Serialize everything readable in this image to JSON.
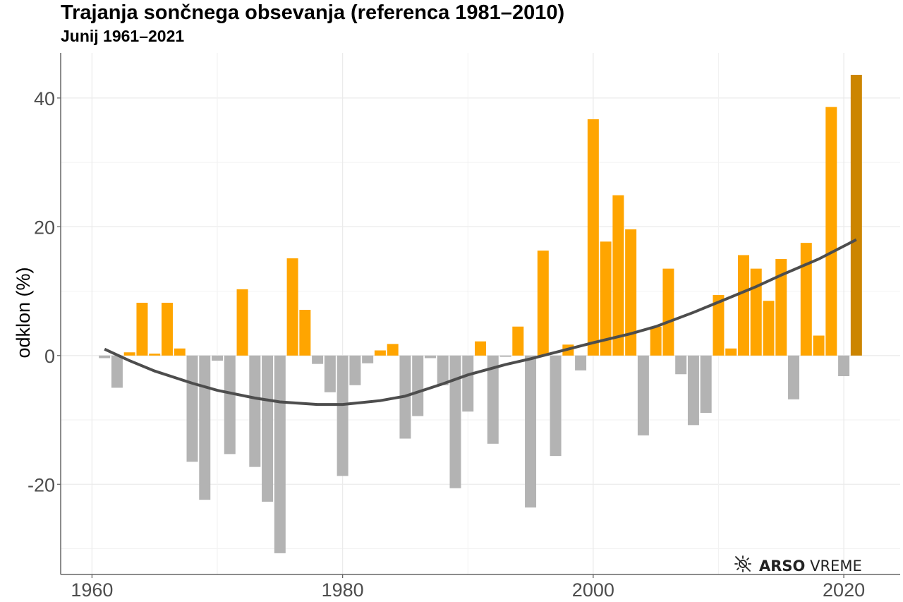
{
  "title": "Trajanja sončnega obsevanja (referenca 1981–2010)",
  "subtitle": "Junij 1961–2021",
  "logo": {
    "icon": "sun-crossed-icon",
    "brand_bold": "ARSO",
    "brand_light": "VREME"
  },
  "chart_data": {
    "type": "bar",
    "title": "Trajanja sončnega obsevanja (referenca 1981–2010)",
    "subtitle": "Junij 1961–2021",
    "xlabel": "",
    "ylabel": "odklon (%)",
    "xlim": [
      1957.5,
      2024.5
    ],
    "ylim": [
      -34,
      47
    ],
    "xticks": [
      1960,
      1980,
      2000,
      2020
    ],
    "xtick_labels": [
      "1960",
      "1980",
      "2000",
      "2020"
    ],
    "yticks": [
      -20,
      0,
      20,
      40
    ],
    "ytick_labels": [
      "-20",
      "0",
      "20",
      "40"
    ],
    "minor_yticks": [
      -30,
      -10,
      10,
      30
    ],
    "minor_xticks": [
      1970,
      1990,
      2010
    ],
    "grid": true,
    "colors": {
      "positive": "#FFA500",
      "negative": "#B3B3B3",
      "highlight": "#CC8500",
      "trend": "#4D4D4D"
    },
    "highlight_year": 2021,
    "x": [
      1961,
      1962,
      1963,
      1964,
      1965,
      1966,
      1967,
      1968,
      1969,
      1970,
      1971,
      1972,
      1973,
      1974,
      1975,
      1976,
      1977,
      1978,
      1979,
      1980,
      1981,
      1982,
      1983,
      1984,
      1985,
      1986,
      1987,
      1988,
      1989,
      1990,
      1991,
      1992,
      1993,
      1994,
      1995,
      1996,
      1997,
      1998,
      1999,
      2000,
      2001,
      2002,
      2003,
      2004,
      2005,
      2006,
      2007,
      2008,
      2009,
      2010,
      2011,
      2012,
      2013,
      2014,
      2015,
      2016,
      2017,
      2018,
      2019,
      2020,
      2021
    ],
    "values": [
      -0.4,
      -5.0,
      0.5,
      8.2,
      0.3,
      8.2,
      1.1,
      -16.5,
      -22.4,
      -0.8,
      -15.3,
      10.3,
      -17.3,
      -22.7,
      -30.7,
      15.1,
      7.1,
      -1.3,
      -5.7,
      -18.7,
      -4.6,
      -1.2,
      0.8,
      1.8,
      -12.9,
      -9.4,
      -0.4,
      -4.6,
      -20.6,
      -8.7,
      2.2,
      -13.7,
      -0.2,
      4.5,
      -23.6,
      16.3,
      -15.6,
      1.7,
      -2.3,
      36.7,
      17.7,
      24.9,
      19.6,
      -12.4,
      4.5,
      13.5,
      -2.9,
      -10.8,
      -8.9,
      9.4,
      1.1,
      15.6,
      13.5,
      8.5,
      15.0,
      -6.8,
      17.5,
      3.1,
      38.6,
      -3.2,
      43.6
    ],
    "trend": {
      "name": "trend",
      "x": [
        1961,
        1963,
        1965,
        1968,
        1970,
        1973,
        1975,
        1978,
        1980,
        1983,
        1985,
        1988,
        1990,
        1993,
        1995,
        1998,
        2000,
        2003,
        2005,
        2008,
        2010,
        2013,
        2015,
        2018,
        2021
      ],
      "y": [
        1.0,
        -0.8,
        -2.4,
        -4.3,
        -5.4,
        -6.6,
        -7.2,
        -7.6,
        -7.6,
        -7.0,
        -6.3,
        -4.4,
        -3.0,
        -1.4,
        -0.5,
        1.0,
        2.0,
        3.4,
        4.5,
        6.7,
        8.3,
        10.7,
        12.5,
        15.0,
        18.0
      ]
    }
  }
}
